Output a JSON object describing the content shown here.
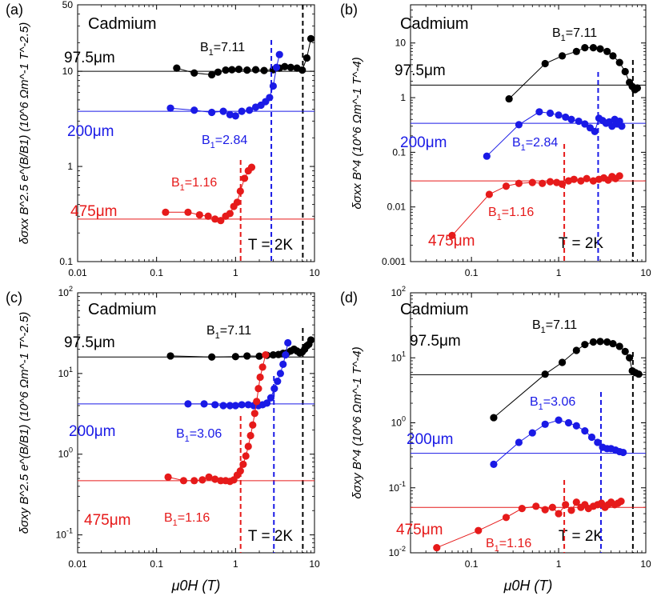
{
  "colors": {
    "black": "#000000",
    "blue": "#1a1ae6",
    "red": "#e61a1a",
    "axis": "#000000"
  },
  "shared_xlabel": "μ0H (T)",
  "chart_data": [
    {
      "id": "a",
      "panel_label": "(a)",
      "type": "scatter",
      "xscale": "log",
      "yscale": "log",
      "xlim": [
        0.01,
        10
      ],
      "ylim": [
        0.1,
        50
      ],
      "xticks": [
        0.01,
        0.1,
        1,
        10
      ],
      "xtick_labels": [
        "0.01",
        "0.1",
        "1",
        "10"
      ],
      "yticks": [
        0.1,
        1,
        10,
        50
      ],
      "ytick_labels": [
        "0.1",
        "1",
        "10",
        "50"
      ],
      "show_xtick_labels": true,
      "show_xlabel": false,
      "ylabel": "δσxx B^2.5 e^(B/B1) (10^6 Ωm^-1 T^-2.5)",
      "title": "Cadmium",
      "temperature_label": "T = 2K",
      "series": [
        {
          "name": "97.5μm",
          "color": "black",
          "baseline": 10,
          "x": [
            0.18,
            0.3,
            0.5,
            0.6,
            0.75,
            0.9,
            1.1,
            1.4,
            1.8,
            2.3,
            3.0,
            3.6,
            4.2,
            5.0,
            6.0,
            7.0,
            8.0,
            9.0
          ],
          "y": [
            10.8,
            9.6,
            9.2,
            9.8,
            10.3,
            10.4,
            10.5,
            10.3,
            10.4,
            10.2,
            10.4,
            10.8,
            11.2,
            11.0,
            10.8,
            10.3,
            13.8,
            22.0
          ],
          "B1_label": "B1=7.11",
          "B1_value": 7.11,
          "thickness_label": "97.5μm"
        },
        {
          "name": "200μm",
          "color": "blue",
          "baseline": 3.8,
          "x": [
            0.15,
            0.3,
            0.5,
            0.7,
            0.85,
            1.0,
            1.2,
            1.5,
            1.8,
            2.1,
            2.4,
            2.7,
            3.0,
            3.3,
            3.6
          ],
          "y": [
            4.1,
            3.9,
            3.7,
            3.8,
            3.5,
            3.4,
            3.8,
            3.9,
            4.2,
            4.4,
            4.8,
            5.3,
            7.0,
            11.0,
            15.0
          ],
          "B1_label": "B1=2.84",
          "B1_value": 2.84,
          "thickness_label": "200μm"
        },
        {
          "name": "475μm",
          "color": "red",
          "baseline": 0.28,
          "x": [
            0.13,
            0.25,
            0.35,
            0.45,
            0.55,
            0.65,
            0.75,
            0.85,
            0.95,
            1.05,
            1.15,
            1.3,
            1.45,
            1.6
          ],
          "y": [
            0.33,
            0.33,
            0.31,
            0.3,
            0.28,
            0.27,
            0.3,
            0.32,
            0.38,
            0.42,
            0.55,
            0.75,
            0.9,
            0.98
          ],
          "B1_label": "B1=1.16",
          "B1_value": 1.16,
          "thickness_label": "475μm"
        }
      ]
    },
    {
      "id": "b",
      "panel_label": "(b)",
      "type": "scatter",
      "xscale": "log",
      "yscale": "log",
      "xlim": [
        0.02,
        10
      ],
      "ylim": [
        0.001,
        50
      ],
      "xticks": [
        0.1,
        1,
        10
      ],
      "xtick_labels": [
        "0.1",
        "1",
        "10"
      ],
      "yticks": [
        0.001,
        0.01,
        0.1,
        1,
        10
      ],
      "ytick_labels": [
        "0.001",
        "0.01",
        "0.1",
        "1",
        "10"
      ],
      "show_xtick_labels": true,
      "show_xlabel": false,
      "ylabel": "δσxx B^4 (10^6 Ωm^-1 T^-4)",
      "title": "Cadmium",
      "temperature_label": "T = 2K",
      "series": [
        {
          "name": "97.5μm",
          "color": "black",
          "baseline": 1.7,
          "x": [
            0.27,
            0.7,
            1.1,
            1.6,
            2.0,
            2.5,
            3.0,
            3.6,
            4.2,
            5.0,
            5.8,
            6.5,
            7.0,
            7.5,
            8.0
          ],
          "y": [
            0.95,
            4.2,
            5.8,
            7.0,
            8.2,
            8.2,
            7.8,
            7.0,
            5.8,
            4.4,
            3.0,
            1.9,
            1.6,
            1.4,
            1.5
          ],
          "B1_label": "B1=7.11",
          "B1_value": 7.11,
          "thickness_label": "97.5μm"
        },
        {
          "name": "200μm",
          "color": "blue",
          "baseline": 0.34,
          "x": [
            0.15,
            0.35,
            0.6,
            0.8,
            1.0,
            1.2,
            1.4,
            1.7,
            2.0,
            2.3,
            2.6,
            2.9,
            3.2,
            3.5,
            3.8,
            4.1,
            4.4,
            4.7,
            5.0,
            5.3
          ],
          "y": [
            0.085,
            0.32,
            0.55,
            0.52,
            0.48,
            0.44,
            0.4,
            0.37,
            0.33,
            0.28,
            0.24,
            0.42,
            0.38,
            0.34,
            0.36,
            0.3,
            0.4,
            0.33,
            0.37,
            0.3
          ],
          "B1_label": "B1=2.84",
          "B1_value": 2.84,
          "thickness_label": "200μm"
        },
        {
          "name": "475μm",
          "color": "red",
          "baseline": 0.03,
          "x": [
            0.06,
            0.16,
            0.25,
            0.35,
            0.5,
            0.65,
            0.8,
            0.95,
            1.1,
            1.3,
            1.5,
            1.8,
            2.1,
            2.5,
            2.9,
            3.3,
            3.7,
            4.1,
            4.5,
            5.0
          ],
          "y": [
            0.003,
            0.017,
            0.024,
            0.027,
            0.028,
            0.027,
            0.029,
            0.028,
            0.026,
            0.03,
            0.032,
            0.03,
            0.033,
            0.03,
            0.032,
            0.034,
            0.031,
            0.036,
            0.033,
            0.037
          ],
          "B1_label": "B1=1.16",
          "B1_value": 1.16,
          "thickness_label": "475μm"
        }
      ]
    },
    {
      "id": "c",
      "panel_label": "(c)",
      "type": "scatter",
      "xscale": "log",
      "yscale": "log",
      "xlim": [
        0.01,
        10
      ],
      "ylim": [
        0.06,
        100
      ],
      "xticks": [
        0.01,
        0.1,
        1,
        10
      ],
      "xtick_labels": [
        "0.01",
        "0.1",
        "1",
        "10"
      ],
      "yticks": [
        0.1,
        1,
        10,
        100
      ],
      "ytick_labels": [
        "10^-1",
        "10^0",
        "10^1",
        "10^2"
      ],
      "show_xtick_labels": true,
      "show_xlabel": true,
      "ylabel": "δσxy B^2.5 e^(B/B1) (10^6 Ωm^-1 T^-2.5)",
      "title": "Cadmium",
      "temperature_label": "T = 2K",
      "series": [
        {
          "name": "97.5μm",
          "color": "black",
          "baseline": 16,
          "x": [
            0.15,
            0.5,
            1.0,
            1.4,
            2.0,
            2.5,
            3.0,
            3.5,
            4.0,
            4.5,
            5.0,
            5.5,
            6.0,
            6.5,
            7.0,
            7.5,
            8.0,
            8.5,
            9.0
          ],
          "y": [
            16.5,
            16.0,
            16.2,
            16.5,
            16.4,
            16.8,
            17.0,
            17.2,
            17.8,
            18.0,
            19.0,
            20.0,
            19.0,
            18.0,
            18.5,
            20.0,
            22.0,
            23.0,
            26.0
          ],
          "B1_label": "B1=7.11",
          "B1_value": 7.11,
          "thickness_label": "97.5μm"
        },
        {
          "name": "200μm",
          "color": "blue",
          "baseline": 4.2,
          "x": [
            0.25,
            0.4,
            0.55,
            0.7,
            0.85,
            1.0,
            1.2,
            1.45,
            1.7,
            1.95,
            2.2,
            2.5,
            2.8,
            3.1,
            3.4,
            3.7,
            4.0,
            4.3,
            4.6
          ],
          "y": [
            4.2,
            4.2,
            4.1,
            4.0,
            4.0,
            4.0,
            4.1,
            4.1,
            4.0,
            4.0,
            4.1,
            4.3,
            5.0,
            6.5,
            8.0,
            10.0,
            13.0,
            17.0,
            24.0
          ],
          "B1_label": "B1=3.06",
          "B1_value": 3.06,
          "thickness_label": "200μm"
        },
        {
          "name": "475μm",
          "color": "red",
          "baseline": 0.47,
          "x": [
            0.14,
            0.22,
            0.3,
            0.38,
            0.46,
            0.55,
            0.65,
            0.75,
            0.85,
            0.95,
            1.05,
            1.15,
            1.25,
            1.35,
            1.45,
            1.55,
            1.65,
            1.75,
            1.85,
            1.95,
            2.05,
            2.2,
            2.4
          ],
          "y": [
            0.52,
            0.47,
            0.47,
            0.48,
            0.52,
            0.49,
            0.47,
            0.47,
            0.46,
            0.48,
            0.55,
            0.62,
            0.75,
            0.95,
            1.25,
            1.7,
            2.3,
            3.2,
            4.5,
            6.5,
            9.0,
            12.0,
            17.0
          ],
          "B1_label": "B1=1.16",
          "B1_value": 1.16,
          "thickness_label": "475μm"
        }
      ]
    },
    {
      "id": "d",
      "panel_label": "(d)",
      "type": "scatter",
      "xscale": "log",
      "yscale": "log",
      "xlim": [
        0.02,
        10
      ],
      "ylim": [
        0.01,
        100
      ],
      "xticks": [
        0.1,
        1,
        10
      ],
      "xtick_labels": [
        "0.1",
        "1",
        "10"
      ],
      "yticks": [
        0.01,
        0.1,
        1,
        10,
        100
      ],
      "ytick_labels": [
        "10^-2",
        "10^-1",
        "10^0",
        "10^1",
        "10^2"
      ],
      "show_xtick_labels": true,
      "show_xlabel": true,
      "ylabel": "δσxy B^4 (10^6 Ωm^-1 T^-4)",
      "title": "Cadmium",
      "temperature_label": "T = 2K",
      "series": [
        {
          "name": "97.5μm",
          "color": "black",
          "baseline": 5.5,
          "x": [
            0.18,
            0.7,
            1.1,
            1.6,
            2.0,
            2.5,
            3.0,
            3.6,
            4.2,
            5.0,
            5.8,
            6.5,
            7.0,
            7.6,
            8.3
          ],
          "y": [
            1.2,
            5.6,
            8.5,
            13.0,
            16.0,
            17.5,
            17.8,
            17.5,
            16.5,
            15.0,
            12.5,
            10.0,
            6.3,
            5.9,
            5.6
          ],
          "B1_label": "B1=7.11",
          "B1_value": 7.11,
          "thickness_label": "97.5μm"
        },
        {
          "name": "200μm",
          "color": "blue",
          "baseline": 0.34,
          "x": [
            0.18,
            0.35,
            0.5,
            0.7,
            1.0,
            1.3,
            1.6,
            2.0,
            2.4,
            2.8,
            3.2,
            3.6,
            4.0,
            4.5,
            5.0,
            5.5
          ],
          "y": [
            0.23,
            0.5,
            0.7,
            0.95,
            1.1,
            1.0,
            0.9,
            0.75,
            0.6,
            0.5,
            0.42,
            0.4,
            0.4,
            0.38,
            0.36,
            0.35
          ],
          "B1_label": "B1=3.06",
          "B1_value": 3.06,
          "thickness_label": "200μm"
        },
        {
          "name": "475μm",
          "color": "red",
          "baseline": 0.05,
          "x": [
            0.04,
            0.12,
            0.25,
            0.38,
            0.55,
            0.7,
            0.85,
            1.0,
            1.2,
            1.4,
            1.6,
            1.8,
            2.0,
            2.2,
            2.5,
            2.8,
            3.1,
            3.4,
            3.7,
            4.0,
            4.4,
            4.8,
            5.2
          ],
          "y": [
            0.012,
            0.022,
            0.035,
            0.048,
            0.052,
            0.046,
            0.05,
            0.04,
            0.055,
            0.045,
            0.06,
            0.05,
            0.055,
            0.048,
            0.052,
            0.055,
            0.058,
            0.05,
            0.055,
            0.06,
            0.055,
            0.058,
            0.062
          ],
          "B1_label": "B1=1.16",
          "B1_value": 1.16,
          "thickness_label": "475μm"
        }
      ]
    }
  ]
}
